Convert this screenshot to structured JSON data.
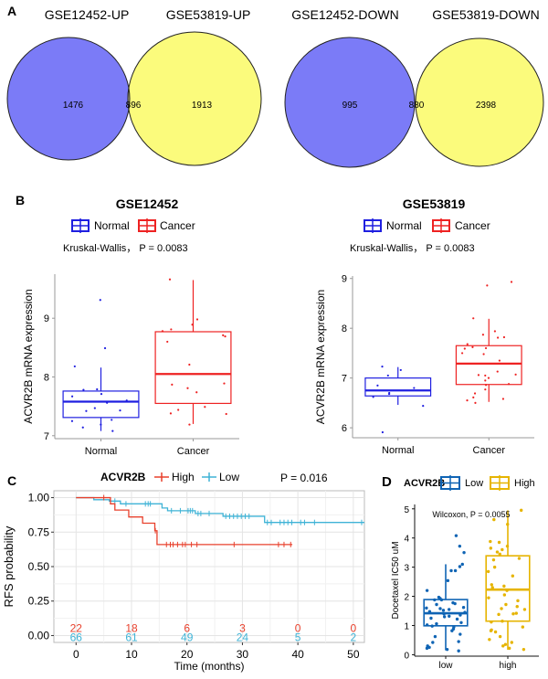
{
  "panel_labels": {
    "A": "A",
    "B": "B",
    "C": "C",
    "D": "D"
  },
  "colors": {
    "venn_left": "#7b7bf7",
    "venn_right": "#fbfb7c",
    "venn_overlap": "#bdbb87",
    "normal": "#1f1fe0",
    "cancer": "#ee2222",
    "km_high": "#e8402c",
    "km_low": "#3fb3d6",
    "d_low": "#0f64b4",
    "d_high": "#e6b400"
  },
  "chart_data": [
    {
      "type": "venn",
      "id": "venn-up",
      "sets": [
        "GSE12452-UP",
        "GSE53819-UP"
      ],
      "values": {
        "left_only": 1476,
        "overlap": 896,
        "right_only": 1913
      }
    },
    {
      "type": "venn",
      "id": "venn-down",
      "sets": [
        "GSE12452-DOWN",
        "GSE53819-DOWN"
      ],
      "values": {
        "left_only": 995,
        "overlap": 880,
        "right_only": 2398
      }
    },
    {
      "type": "box",
      "id": "box-gse12452",
      "title": "GSE12452",
      "legend": [
        "Normal",
        "Cancer"
      ],
      "stat_text": "Kruskal-Wallis，  P = 0.0083",
      "ylabel": "ACVR2B mRNA expression",
      "xlabel": "",
      "categories": [
        "Normal",
        "Cancer"
      ],
      "ylim": [
        6.95,
        9.75
      ],
      "yticks": [
        7,
        8,
        9
      ],
      "boxes": [
        {
          "q1": 7.31,
          "median": 7.58,
          "q3": 7.76,
          "whisker_low": 7.08,
          "whisker_high": 8.16,
          "points": [
            9.31,
            8.49,
            8.18,
            7.78,
            7.79,
            7.71,
            7.67,
            7.6,
            7.56,
            7.47,
            7.42,
            7.43,
            7.27,
            7.25,
            7.19,
            7.14,
            7.08
          ]
        },
        {
          "q1": 7.55,
          "median": 8.05,
          "q3": 8.77,
          "whisker_low": 7.2,
          "whisker_high": 9.65,
          "points": [
            9.66,
            8.98,
            8.89,
            8.81,
            8.78,
            8.71,
            8.69,
            8.6,
            8.21,
            7.89,
            7.87,
            7.81,
            7.74,
            7.49,
            7.44,
            7.38,
            7.37,
            7.19
          ]
        }
      ]
    },
    {
      "type": "box",
      "id": "box-gse53819",
      "title": "GSE53819",
      "legend": [
        "Normal",
        "Cancer"
      ],
      "stat_text": "Kruskal-Wallis，  P = 0.0083",
      "ylabel": "ACVR2B mRNA expression",
      "xlabel": "",
      "categories": [
        "Normal",
        "Cancer"
      ],
      "ylim": [
        5.8,
        9.05
      ],
      "yticks": [
        6,
        7,
        8,
        9
      ],
      "boxes": [
        {
          "q1": 6.64,
          "median": 6.75,
          "q3": 7.0,
          "whisker_low": 6.46,
          "whisker_high": 7.22,
          "points": [
            7.23,
            7.16,
            7.05,
            6.85,
            6.8,
            6.7,
            6.68,
            6.62,
            6.44,
            5.91
          ]
        },
        {
          "q1": 6.87,
          "median": 7.29,
          "q3": 7.65,
          "whisker_low": 6.52,
          "whisker_high": 8.19,
          "points": [
            8.93,
            8.86,
            8.2,
            7.94,
            7.87,
            7.82,
            7.81,
            7.68,
            7.62,
            7.6,
            7.59,
            7.5,
            7.48,
            7.35,
            7.13,
            7.07,
            7.06,
            7.05,
            7.0,
            6.95,
            6.88,
            6.86,
            6.77,
            6.69,
            6.61,
            6.58,
            6.55,
            6.5
          ]
        }
      ]
    },
    {
      "type": "line",
      "subtype": "kaplan-meier",
      "id": "km-rfs",
      "legend_title": "ACVR2B",
      "legend": [
        "High",
        "Low"
      ],
      "pvalue_text": "P = 0.016",
      "ylabel": "RFS probability",
      "xlabel": "Time (months)",
      "xlim": [
        -4,
        52
      ],
      "ylim": [
        -0.05,
        1.05
      ],
      "xticks": [
        0,
        10,
        20,
        30,
        40,
        50
      ],
      "yticks": [
        "0.00",
        "0.25",
        "0.50",
        "0.75",
        "1.00"
      ],
      "grid": true,
      "series": [
        {
          "name": "High",
          "steps": [
            [
              0,
              1.0
            ],
            [
              6.2,
              1.0
            ],
            [
              6.2,
              0.955
            ],
            [
              7.0,
              0.955
            ],
            [
              7.0,
              0.91
            ],
            [
              9.5,
              0.91
            ],
            [
              9.5,
              0.86
            ],
            [
              12.0,
              0.86
            ],
            [
              12.0,
              0.815
            ],
            [
              14.2,
              0.815
            ],
            [
              14.2,
              0.76
            ],
            [
              14.6,
              0.76
            ],
            [
              14.6,
              0.66
            ],
            [
              39.0,
              0.66
            ]
          ],
          "censors": [
            [
              5.0,
              1.0
            ],
            [
              14.3,
              0.76
            ],
            [
              16.3,
              0.66
            ],
            [
              17.0,
              0.66
            ],
            [
              17.5,
              0.66
            ],
            [
              18.3,
              0.66
            ],
            [
              19.2,
              0.66
            ],
            [
              19.7,
              0.66
            ],
            [
              20.8,
              0.66
            ],
            [
              21.8,
              0.66
            ],
            [
              28.5,
              0.66
            ],
            [
              36.5,
              0.66
            ],
            [
              37.5,
              0.66
            ],
            [
              38.7,
              0.66
            ]
          ]
        },
        {
          "name": "Low",
          "steps": [
            [
              0,
              1.0
            ],
            [
              3.2,
              1.0
            ],
            [
              3.2,
              0.985
            ],
            [
              6.0,
              0.985
            ],
            [
              6.0,
              0.975
            ],
            [
              8.0,
              0.975
            ],
            [
              8.0,
              0.955
            ],
            [
              15.5,
              0.955
            ],
            [
              15.5,
              0.925
            ],
            [
              16.5,
              0.925
            ],
            [
              16.5,
              0.905
            ],
            [
              21.5,
              0.905
            ],
            [
              21.5,
              0.885
            ],
            [
              26.5,
              0.885
            ],
            [
              26.5,
              0.865
            ],
            [
              34.0,
              0.865
            ],
            [
              34.0,
              0.82
            ],
            [
              52.0,
              0.82
            ]
          ],
          "censors": [
            [
              7.0,
              0.975
            ],
            [
              9.0,
              0.955
            ],
            [
              12.5,
              0.955
            ],
            [
              13.0,
              0.955
            ],
            [
              13.4,
              0.955
            ],
            [
              17.2,
              0.905
            ],
            [
              18.8,
              0.905
            ],
            [
              20.2,
              0.905
            ],
            [
              20.6,
              0.905
            ],
            [
              21.0,
              0.905
            ],
            [
              22.0,
              0.885
            ],
            [
              22.5,
              0.885
            ],
            [
              24.0,
              0.885
            ],
            [
              27.0,
              0.865
            ],
            [
              27.7,
              0.865
            ],
            [
              28.4,
              0.865
            ],
            [
              29.1,
              0.865
            ],
            [
              29.8,
              0.865
            ],
            [
              30.5,
              0.865
            ],
            [
              31.2,
              0.865
            ],
            [
              34.5,
              0.82
            ],
            [
              35.2,
              0.82
            ],
            [
              36.8,
              0.82
            ],
            [
              37.5,
              0.82
            ],
            [
              38.2,
              0.82
            ],
            [
              38.9,
              0.82
            ],
            [
              40.5,
              0.82
            ],
            [
              41.2,
              0.82
            ],
            [
              43.0,
              0.82
            ],
            [
              51.5,
              0.82
            ]
          ]
        }
      ],
      "risk_table": {
        "times": [
          0,
          10,
          20,
          30,
          40,
          50
        ],
        "High": [
          22,
          18,
          6,
          3,
          0,
          0
        ],
        "Low": [
          66,
          61,
          49,
          24,
          5,
          2
        ]
      }
    },
    {
      "type": "box",
      "id": "box-docetaxel",
      "legend_title": "ACVR2B",
      "legend": [
        "Low",
        "High"
      ],
      "stat_text": "Wilcoxon, P = 0.0055",
      "ylabel": "Docetaxel IC50 uM",
      "xlabel": "",
      "categories": [
        "low",
        "high"
      ],
      "ylim": [
        -0.05,
        5.15
      ],
      "yticks": [
        0,
        1,
        2,
        3,
        4,
        5
      ],
      "boxes": [
        {
          "q1": 0.99,
          "median": 1.42,
          "q3": 1.89,
          "whisker_low": 0.15,
          "whisker_high": 3.1,
          "points": [
            4.08,
            3.72,
            3.5,
            3.1,
            3.02,
            2.88,
            2.88,
            2.54,
            2.2,
            1.97,
            1.93,
            1.88,
            1.88,
            1.78,
            1.75,
            1.72,
            1.62,
            1.6,
            1.58,
            1.55,
            1.52,
            1.48,
            1.45,
            1.4,
            1.36,
            1.32,
            1.3,
            1.25,
            1.22,
            1.1,
            1.06,
            1.02,
            0.98,
            0.95,
            0.88,
            0.82,
            0.7,
            0.62,
            0.45,
            0.42,
            0.3,
            0.25,
            0.22,
            0.18,
            0.13
          ]
        },
        {
          "q1": 1.15,
          "median": 2.23,
          "q3": 3.39,
          "whisker_low": 0.17,
          "whisker_high": 4.95,
          "points": [
            4.95,
            4.63,
            4.47,
            3.88,
            3.85,
            3.72,
            3.65,
            3.6,
            3.52,
            3.45,
            3.3,
            3.25,
            3.0,
            2.85,
            2.7,
            2.4,
            2.35,
            2.3,
            2.2,
            2.05,
            1.95,
            1.85,
            1.72,
            1.65,
            1.58,
            1.55,
            1.42,
            1.4,
            1.38,
            1.15,
            1.12,
            0.95,
            0.85,
            0.82,
            0.78,
            0.62,
            0.52,
            0.42,
            0.35,
            0.3,
            0.22,
            0.18
          ]
        }
      ]
    }
  ]
}
